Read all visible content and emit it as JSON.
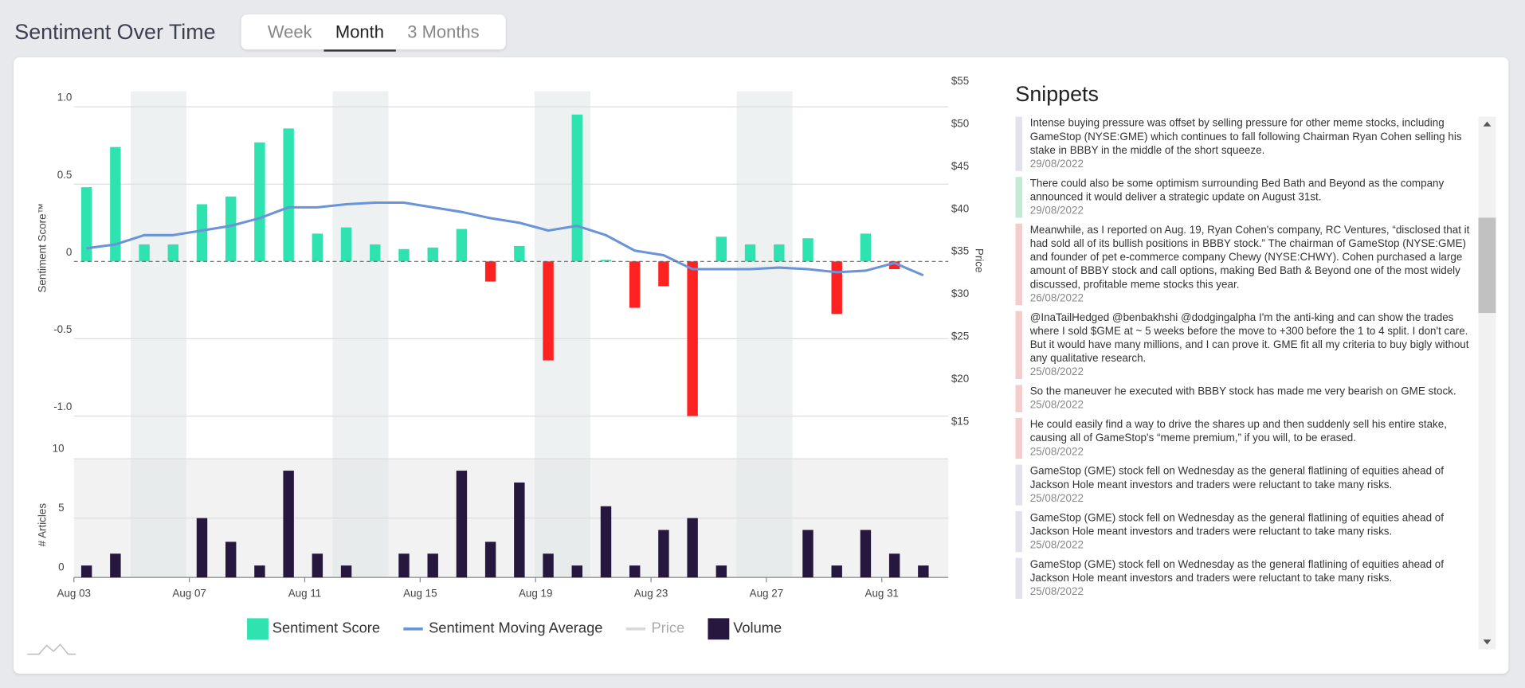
{
  "header": {
    "title": "Sentiment Over Time"
  },
  "tabs": {
    "items": [
      "Week",
      "Month",
      "3 Months"
    ],
    "active": 1
  },
  "chart_data": {
    "type": "combo",
    "categories": [
      "Aug 03",
      null,
      null,
      null,
      "Aug 07",
      null,
      null,
      null,
      "Aug 11",
      null,
      null,
      null,
      "Aug 15",
      null,
      null,
      null,
      "Aug 19",
      null,
      null,
      null,
      "Aug 23",
      null,
      null,
      null,
      "Aug 27",
      null,
      null,
      null,
      "Aug 31",
      null
    ],
    "series": [
      {
        "name": "Sentiment Score",
        "type": "bar",
        "color": "#2ee3b0",
        "negative_color": "#ff2222",
        "values": [
          0.48,
          0.74,
          0.11,
          0.11,
          0.37,
          0.42,
          0.77,
          0.86,
          0.18,
          0.22,
          0.11,
          0.08,
          0.09,
          0.21,
          -0.13,
          0.1,
          -0.64,
          0.95,
          0.01,
          -0.3,
          -0.16,
          -1.0,
          0.16,
          0.11,
          0.11,
          0.15,
          -0.34,
          0.18,
          -0.05,
          null
        ]
      },
      {
        "name": "Sentiment Moving Average",
        "type": "line",
        "color": "#6a93d8",
        "values": [
          0.085,
          0.11,
          0.17,
          0.17,
          0.2,
          0.23,
          0.28,
          0.35,
          0.35,
          0.37,
          0.38,
          0.38,
          0.35,
          0.32,
          0.28,
          0.25,
          0.2,
          0.23,
          0.17,
          0.07,
          0.04,
          -0.05,
          -0.05,
          -0.05,
          -0.04,
          -0.05,
          -0.07,
          -0.06,
          -0.01,
          -0.09
        ]
      },
      {
        "name": "Price",
        "type": "line",
        "color": "#d9d9d9",
        "axis": "y2",
        "hidden": true
      },
      {
        "name": "Volume",
        "type": "bar",
        "color": "#26173f",
        "axis": "y3",
        "values": [
          1,
          2,
          0,
          0,
          5,
          3,
          1,
          9,
          2,
          1,
          0,
          2,
          2,
          9,
          3,
          8,
          2,
          1,
          6,
          1,
          4,
          5,
          1,
          0,
          0,
          4,
          1,
          4,
          2,
          1
        ]
      }
    ],
    "ylabel": "Sentiment Score™",
    "ylim": [
      -1.0,
      1.1
    ],
    "yticks": [
      {
        "value": 1.0,
        "label": "1.0"
      },
      {
        "value": 0.5,
        "label": "0.5"
      },
      0,
      {
        "value": -0.5,
        "label": "-0.5"
      },
      {
        "value": -1.0,
        "label": "-1.0"
      }
    ],
    "y2label": "Price",
    "y2lim": [
      15,
      55
    ],
    "y2ticks": [
      {
        "value": 55,
        "label": "$55"
      },
      {
        "value": 50,
        "label": "$50"
      },
      {
        "value": 45,
        "label": "$45"
      },
      {
        "value": 40,
        "label": "$40"
      },
      {
        "value": 35,
        "label": "$35"
      },
      {
        "value": 30,
        "label": "$30"
      },
      {
        "value": 25,
        "label": "$25"
      },
      {
        "value": 20,
        "label": "$20"
      },
      {
        "value": 15,
        "label": "$15"
      }
    ],
    "y3label": "# Articles",
    "y3lim": [
      0,
      10
    ],
    "y3ticks": [
      10,
      5,
      0
    ],
    "grid": true,
    "legend": "bottom"
  },
  "snippets": {
    "title": "Snippets",
    "items": [
      {
        "text": "Intense buying pressure was offset by selling pressure for other meme stocks, including GameStop (NYSE:GME) which continues to fall following Chairman Ryan Cohen selling his stake in BBBY in the middle of the short squeeze.",
        "date": "29/08/2022",
        "color": "#e2e2ec"
      },
      {
        "text": "There could also be some optimism surrounding Bed Bath and Beyond as the company announced it would deliver a strategic update on August 31st.",
        "date": "29/08/2022",
        "color": "#c6e8d6"
      },
      {
        "text": "Meanwhile, as I reported on Aug. 19, Ryan Cohen's company, RC Ventures, “disclosed that it had sold all of its bullish positions in BBBY stock.” The chairman of GameStop (NYSE:GME) and founder of pet e-commerce company Chewy (NYSE:CHWY). Cohen purchased a large amount of BBBY stock and call options, making Bed Bath & Beyond one of the most widely discussed, profitable meme stocks this year.",
        "date": "26/08/2022",
        "color": "#f3cccc"
      },
      {
        "text": "@InaTailHedged @benbakhshi @dodgingalpha I'm the anti-king and can show the trades where I sold $GME at ~ 5 weeks before the move to +300 before the 1 to 4 split. I don't care. But it would have many millions, and I can prove it. GME fit all my criteria to buy bigly without any qualitative research.",
        "date": "25/08/2022",
        "color": "#f3cccc"
      },
      {
        "text": "So the maneuver he executed with BBBY stock has made me very bearish on GME stock.",
        "date": "25/08/2022",
        "color": "#f3cccc"
      },
      {
        "text": "He could easily find a way to drive the shares up and then suddenly sell his entire stake, causing all of GameStop's “meme premium,” if you will, to be erased.",
        "date": "25/08/2022",
        "color": "#f3cccc"
      },
      {
        "text": "GameStop (GME) stock fell on Wednesday as the general flatlining of equities ahead of Jackson Hole meant investors and traders were reluctant to take many risks.",
        "date": "25/08/2022",
        "color": "#e2e2ec"
      },
      {
        "text": "GameStop (GME) stock fell on Wednesday as the general flatlining of equities ahead of Jackson Hole meant investors and traders were reluctant to take many risks.",
        "date": "25/08/2022",
        "color": "#e2e2ec"
      },
      {
        "text": "GameStop (GME) stock fell on Wednesday as the general flatlining of equities ahead of Jackson Hole meant investors and traders were reluctant to take many risks.",
        "date": "25/08/2022",
        "color": "#e2e2ec"
      }
    ]
  }
}
